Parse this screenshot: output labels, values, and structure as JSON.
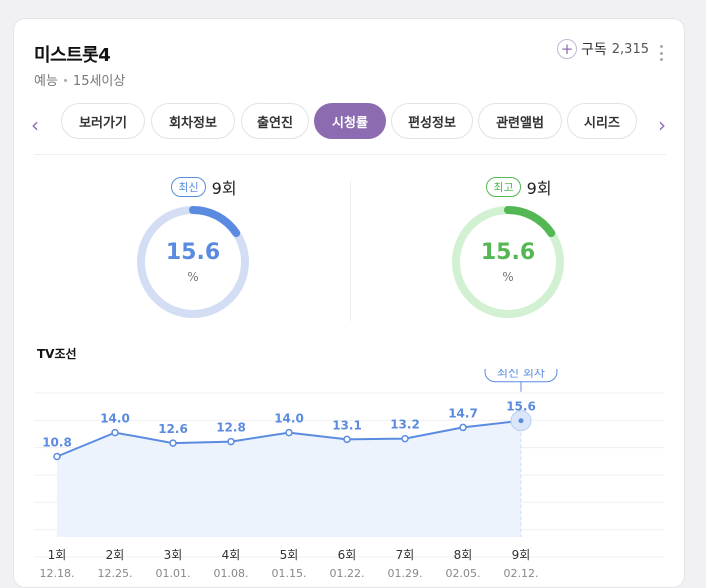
{
  "program": {
    "title": "미스트롯4",
    "genre": "예능",
    "rating": "15세이상",
    "subscribe_label": "구독",
    "subscribe_count": "2,315"
  },
  "tabs": [
    {
      "label": "보러가기",
      "active": false
    },
    {
      "label": "회차정보",
      "active": false
    },
    {
      "label": "출연진",
      "active": false
    },
    {
      "label": "시청률",
      "active": true
    },
    {
      "label": "편성정보",
      "active": false
    },
    {
      "label": "관련앨범",
      "active": false
    },
    {
      "label": "시리즈",
      "active": false
    }
  ],
  "latest": {
    "badge": "최신",
    "episode": "9회",
    "value": "15.6",
    "unit": "%",
    "fraction": 0.156,
    "color": "#5b8be0",
    "track": "#d3def5"
  },
  "best": {
    "badge": "최고",
    "episode": "9회",
    "value": "15.6",
    "unit": "%",
    "fraction": 0.156,
    "color": "#53b853",
    "track": "#d2f0d2"
  },
  "channel": "TV조선",
  "colors": {
    "accent": "#8d6bb0",
    "line": "#5b8be0",
    "area": "#edf3fc"
  },
  "chart_data": {
    "type": "area",
    "series": [
      {
        "values": [
          10.8,
          14.0,
          12.6,
          12.8,
          14.0,
          13.1,
          13.2,
          14.7,
          15.6
        ]
      }
    ],
    "episodes": [
      "1회",
      "2회",
      "3회",
      "4회",
      "5회",
      "6회",
      "7회",
      "8회",
      "9회"
    ],
    "dates": [
      "12.18.",
      "12.25.",
      "01.01.",
      "01.08.",
      "01.15.",
      "01.22.",
      "01.29.",
      "02.05.",
      "02.12."
    ],
    "value_labels": [
      "10.8",
      "14.0",
      "12.6",
      "12.8",
      "14.0",
      "13.1",
      "13.2",
      "14.7",
      "15.6"
    ],
    "callout": "최신 회차",
    "grid": true
  }
}
